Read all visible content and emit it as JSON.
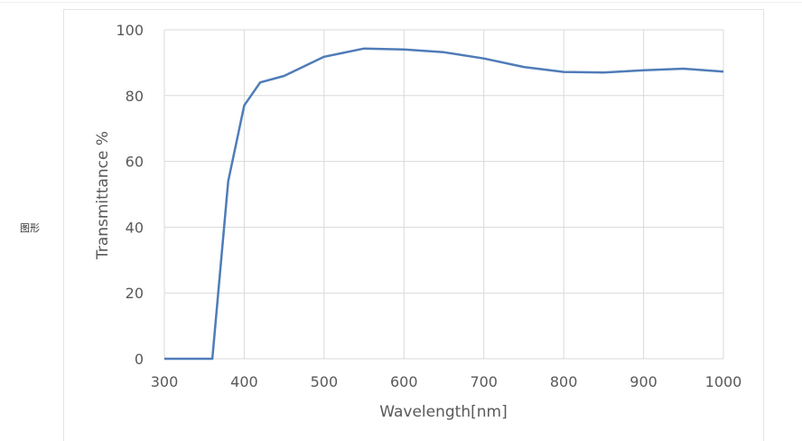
{
  "side_label": "图形",
  "chart_data": {
    "type": "line",
    "title": "",
    "xlabel": "Wavelength[nm]",
    "ylabel": "Transmittance %",
    "xlim": [
      300,
      1000
    ],
    "ylim": [
      0,
      100
    ],
    "xticks": [
      300,
      400,
      500,
      600,
      700,
      800,
      900,
      1000
    ],
    "yticks": [
      0,
      20,
      40,
      60,
      80,
      100
    ],
    "grid": true,
    "line_color": "#4f7cb8",
    "series": [
      {
        "x": [
          300,
          360,
          380,
          400,
          420,
          450,
          500,
          550,
          600,
          650,
          700,
          750,
          800,
          850,
          900,
          950,
          1000
        ],
        "y": [
          0,
          0,
          54,
          77,
          84,
          86,
          91.8,
          94.3,
          94,
          93.2,
          91.3,
          88.7,
          87.2,
          87,
          87.7,
          88.2,
          87.3
        ]
      }
    ]
  }
}
